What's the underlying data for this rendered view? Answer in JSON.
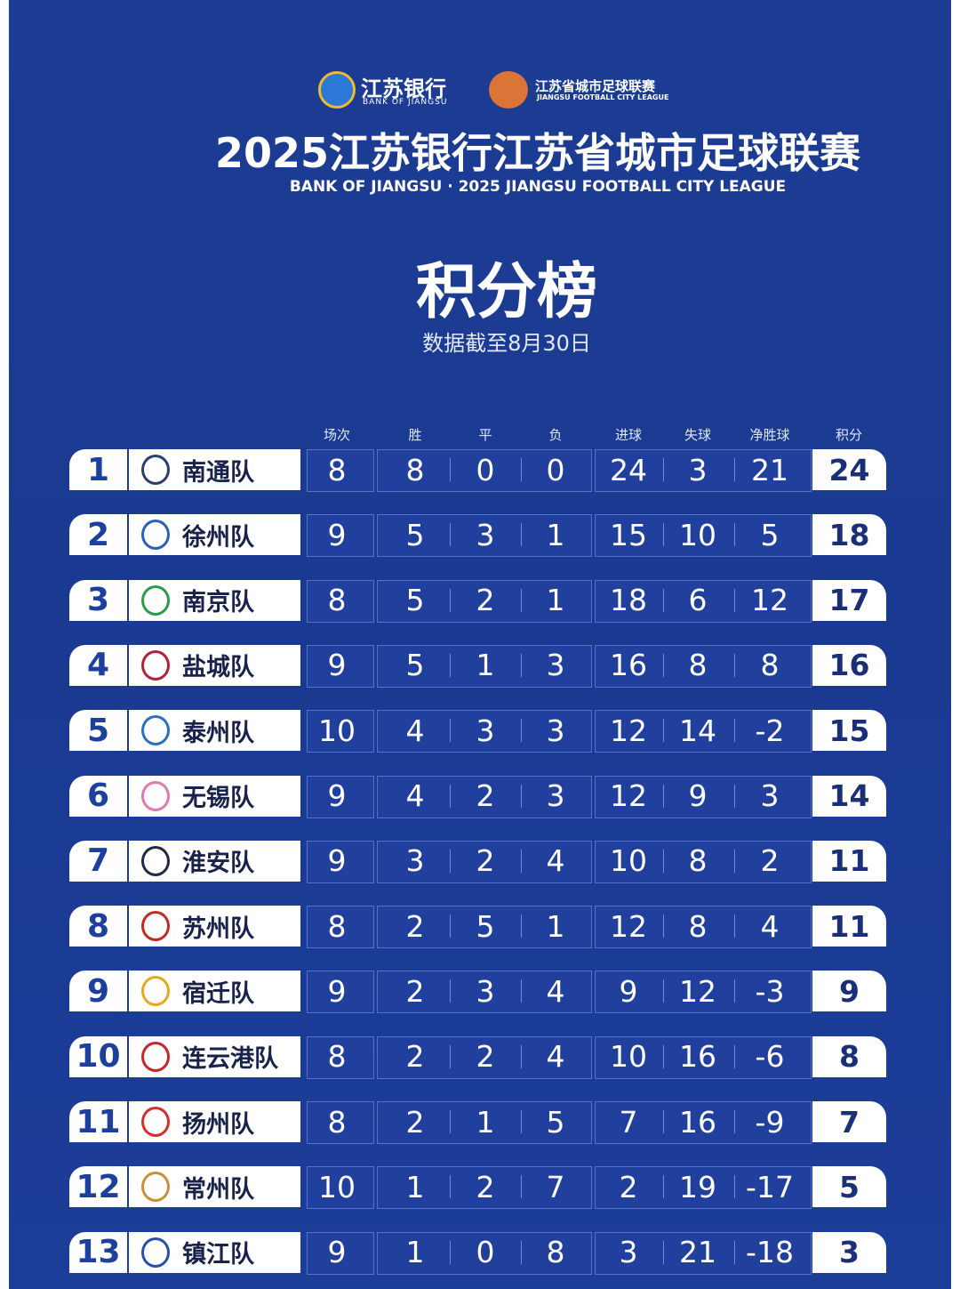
{
  "header": {
    "bank_logo": "江苏银行",
    "bank_logo_en": "BANK OF JIANGSU",
    "league_logo": "江苏省城市足球联赛",
    "league_logo_en": "JIANGSU FOOTBALL CITY LEAGUE",
    "title": "2025江苏银行江苏省城市足球联赛",
    "subtitle": "BANK OF JIANGSU · 2025 JIANGSU FOOTBALL CITY LEAGUE",
    "heading": "积分榜",
    "note": "数据截至8月30日"
  },
  "table": {
    "columns": [
      "场次",
      "胜",
      "平",
      "负",
      "进球",
      "失球",
      "净胜球",
      "积分"
    ],
    "rows": [
      [
        1,
        "南通队",
        8,
        8,
        0,
        0,
        24,
        3,
        21,
        24
      ],
      [
        2,
        "徐州队",
        9,
        5,
        3,
        1,
        15,
        10,
        5,
        18
      ],
      [
        3,
        "南京队",
        8,
        5,
        2,
        1,
        18,
        6,
        12,
        17
      ],
      [
        4,
        "盐城队",
        9,
        5,
        1,
        3,
        16,
        8,
        8,
        16
      ],
      [
        5,
        "泰州队",
        10,
        4,
        3,
        3,
        12,
        14,
        -2,
        15
      ],
      [
        6,
        "无锡队",
        9,
        4,
        2,
        3,
        12,
        9,
        3,
        14
      ],
      [
        7,
        "淮安队",
        9,
        3,
        2,
        4,
        10,
        8,
        2,
        11
      ],
      [
        8,
        "苏州队",
        8,
        2,
        5,
        1,
        12,
        8,
        4,
        11
      ],
      [
        9,
        "宿迁队",
        9,
        2,
        3,
        4,
        9,
        12,
        -3,
        9
      ],
      [
        10,
        "连云港队",
        8,
        2,
        2,
        4,
        10,
        16,
        -6,
        8
      ],
      [
        11,
        "扬州队",
        8,
        2,
        1,
        5,
        7,
        16,
        -9,
        7
      ],
      [
        12,
        "常州队",
        10,
        1,
        2,
        7,
        2,
        19,
        -17,
        5
      ],
      [
        13,
        "镇江队",
        9,
        1,
        0,
        8,
        3,
        21,
        -18,
        3
      ]
    ]
  }
}
